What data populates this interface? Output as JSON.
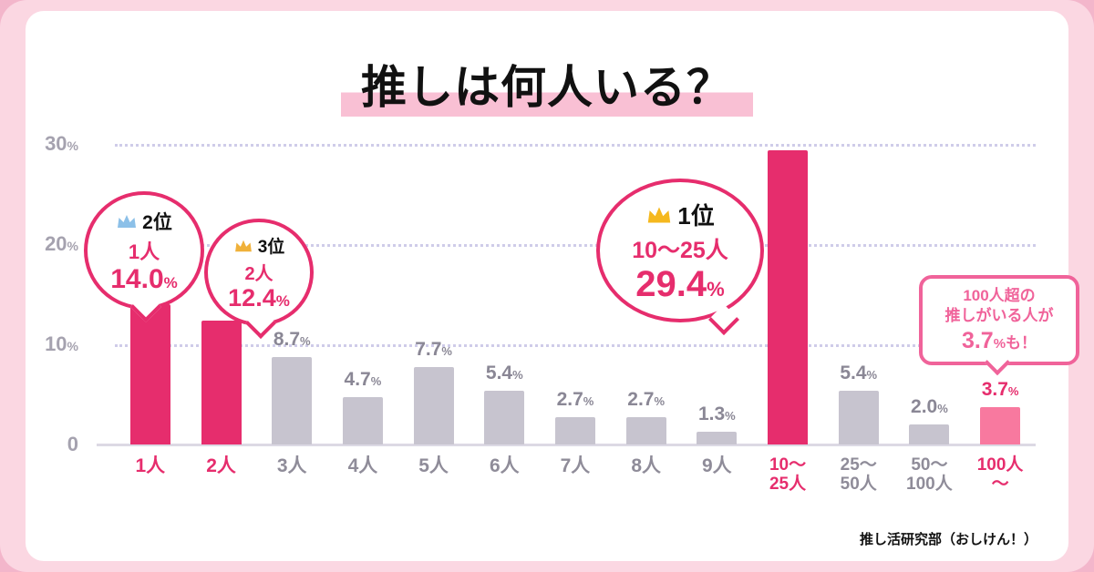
{
  "title": "推しは何人いる？",
  "footer": "推し活研究部（おしけん！）",
  "colors": {
    "accent": "#e62d6d",
    "light_bar": "#f8799f",
    "gray_bar": "#c7c4cf",
    "crown_gold": "#f5b81e",
    "crown_silver": "#8cc0e8",
    "crown_bronze": "#f0b13a",
    "note_pink": "#f0639a"
  },
  "y_ticks": [
    {
      "num": "30",
      "suffix": "%",
      "pos": 0
    },
    {
      "num": "20",
      "suffix": "%",
      "pos": 1
    },
    {
      "num": "10",
      "suffix": "%",
      "pos": 2
    },
    {
      "num": "0",
      "suffix": "",
      "pos": 3
    }
  ],
  "chart_data": {
    "type": "bar",
    "title": "推しは何人いる？",
    "ylabel": "%",
    "ylim": [
      0,
      30
    ],
    "grid": "dotted-horizontal",
    "categories": [
      "1人",
      "2人",
      "3人",
      "4人",
      "5人",
      "6人",
      "7人",
      "8人",
      "9人",
      "10〜25人",
      "25〜50人",
      "50〜100人",
      "100人〜"
    ],
    "values": [
      14.0,
      12.4,
      8.7,
      4.7,
      7.7,
      5.4,
      2.7,
      2.7,
      1.3,
      29.4,
      5.4,
      2.0,
      3.7
    ],
    "points": [
      {
        "label_lines": [
          "1人"
        ],
        "value": 14.0,
        "value_text": "",
        "style": "accent",
        "label_style": "accent"
      },
      {
        "label_lines": [
          "2人"
        ],
        "value": 12.4,
        "value_text": "",
        "style": "accent",
        "label_style": "accent"
      },
      {
        "label_lines": [
          "3人"
        ],
        "value": 8.7,
        "value_text": "8.7",
        "style": "gray",
        "label_style": "gray"
      },
      {
        "label_lines": [
          "4人"
        ],
        "value": 4.7,
        "value_text": "4.7",
        "style": "gray",
        "label_style": "gray"
      },
      {
        "label_lines": [
          "5人"
        ],
        "value": 7.7,
        "value_text": "7.7",
        "style": "gray",
        "label_style": "gray"
      },
      {
        "label_lines": [
          "6人"
        ],
        "value": 5.4,
        "value_text": "5.4",
        "style": "gray",
        "label_style": "gray"
      },
      {
        "label_lines": [
          "7人"
        ],
        "value": 2.7,
        "value_text": "2.7",
        "style": "gray",
        "label_style": "gray"
      },
      {
        "label_lines": [
          "8人"
        ],
        "value": 2.7,
        "value_text": "2.7",
        "style": "gray",
        "label_style": "gray"
      },
      {
        "label_lines": [
          "9人"
        ],
        "value": 1.3,
        "value_text": "1.3",
        "style": "gray",
        "label_style": "gray"
      },
      {
        "label_lines": [
          "10〜",
          "25人"
        ],
        "value": 29.4,
        "value_text": "",
        "style": "accent",
        "label_style": "accent"
      },
      {
        "label_lines": [
          "25〜",
          "50人"
        ],
        "value": 5.4,
        "value_text": "5.4",
        "style": "gray",
        "label_style": "gray"
      },
      {
        "label_lines": [
          "50〜",
          "100人"
        ],
        "value": 2.0,
        "value_text": "2.0",
        "style": "gray",
        "label_style": "gray"
      },
      {
        "label_lines": [
          "100人",
          "〜"
        ],
        "value": 3.7,
        "value_text": "3.7",
        "style": "light",
        "label_style": "accent"
      }
    ]
  },
  "bubbles": {
    "rank2": {
      "rank": "2位",
      "line": "1人",
      "value": "14.0",
      "pct": "%"
    },
    "rank3": {
      "rank": "3位",
      "line": "2人",
      "value": "12.4",
      "pct": "%"
    },
    "rank1": {
      "rank": "1位",
      "line": "10〜25人",
      "value": "29.4",
      "pct": "%"
    }
  },
  "note": {
    "line1": "100人超の",
    "line2": "推しがいる人が",
    "big": "3.7",
    "pct": "%",
    "tail_text": "も！"
  }
}
